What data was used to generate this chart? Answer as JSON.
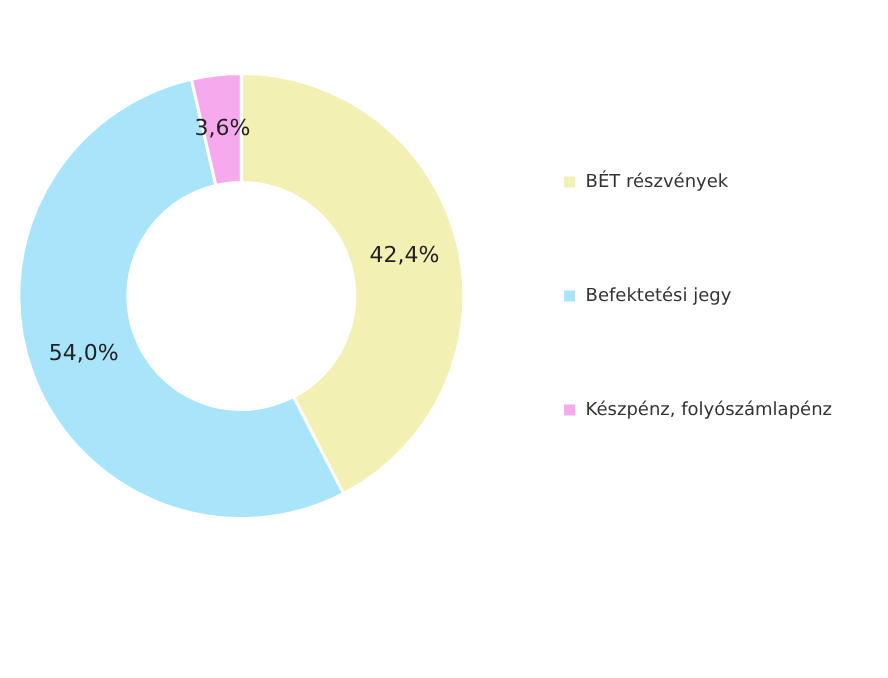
{
  "chart_data": {
    "type": "donut",
    "categories": [
      "BÉT részvények",
      "Befektetési jegy",
      "Készpénz, folyószámlapénz"
    ],
    "values": [
      42.4,
      54.0,
      3.6
    ],
    "colors": [
      "#f2f0b2",
      "#a8e4fa",
      "#f7a9ee"
    ],
    "value_labels": [
      "42,4%",
      "54,0%",
      "3,6%"
    ],
    "legend": "right"
  }
}
